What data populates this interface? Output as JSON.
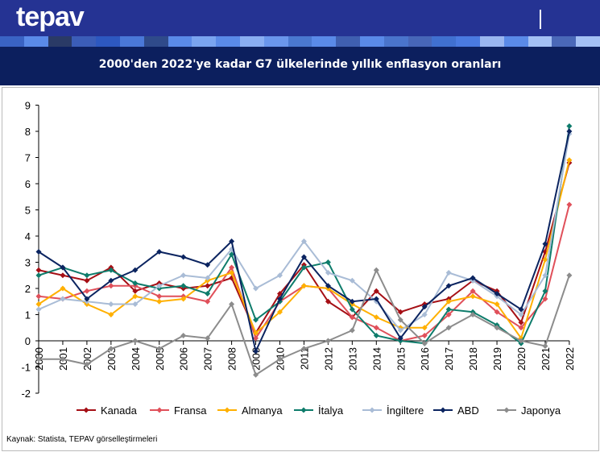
{
  "header": {
    "logo": "tepav"
  },
  "title": "2000'den 2022'ye kadar G7 ülkelerinde yıllık enflasyon oranları",
  "source": "Kaynak: Statista, TEPAV görselleştirmeleri",
  "chart_data": {
    "type": "line",
    "title": "2000'den 2022'ye kadar G7 ülkelerinde yıllık enflasyon oranları",
    "x": [
      "2000",
      "2001",
      "2002",
      "2003",
      "2004",
      "2005",
      "2006",
      "2007",
      "2008",
      "2009",
      "2010",
      "2011",
      "2012",
      "2013",
      "2014",
      "2015",
      "2016",
      "2017",
      "2018",
      "2019",
      "2020",
      "2021",
      "2022"
    ],
    "ylim": [
      -2,
      9
    ],
    "yticks": [
      -2,
      -1,
      0,
      1,
      2,
      3,
      4,
      5,
      6,
      7,
      8,
      9
    ],
    "grid": false,
    "legend": "bottom",
    "series": [
      {
        "name": "Kanada",
        "color": "#a50f15",
        "values": [
          2.7,
          2.5,
          2.3,
          2.8,
          1.9,
          2.2,
          2.0,
          2.1,
          2.4,
          0.3,
          1.8,
          2.9,
          1.5,
          0.9,
          1.9,
          1.1,
          1.4,
          1.6,
          2.3,
          1.9,
          0.7,
          3.4,
          6.8
        ]
      },
      {
        "name": "Fransa",
        "color": "#e0505a",
        "values": [
          1.7,
          1.6,
          1.9,
          2.1,
          2.1,
          1.7,
          1.7,
          1.5,
          2.8,
          0.1,
          1.5,
          2.1,
          2.0,
          0.9,
          0.5,
          0.0,
          0.2,
          1.0,
          1.9,
          1.1,
          0.5,
          1.6,
          5.2
        ]
      },
      {
        "name": "Almanya",
        "color": "#ffb000",
        "values": [
          1.4,
          2.0,
          1.4,
          1.0,
          1.7,
          1.5,
          1.6,
          2.3,
          2.6,
          0.3,
          1.1,
          2.1,
          2.0,
          1.4,
          0.9,
          0.5,
          0.5,
          1.5,
          1.7,
          1.4,
          0.1,
          3.1,
          6.9
        ]
      },
      {
        "name": "İtalya",
        "color": "#0e7c6b",
        "values": [
          2.5,
          2.8,
          2.5,
          2.7,
          2.2,
          2.0,
          2.1,
          1.8,
          3.3,
          0.8,
          1.5,
          2.8,
          3.0,
          1.2,
          0.2,
          0.0,
          -0.1,
          1.2,
          1.1,
          0.6,
          -0.1,
          1.9,
          8.2
        ]
      },
      {
        "name": "İngiltere",
        "color": "#a9bcd6",
        "values": [
          1.2,
          1.6,
          1.5,
          1.4,
          1.4,
          2.1,
          2.5,
          2.4,
          3.5,
          2.0,
          2.5,
          3.8,
          2.6,
          2.3,
          1.5,
          0.4,
          1.0,
          2.6,
          2.3,
          1.7,
          1.0,
          2.5,
          7.9
        ]
      },
      {
        "name": "ABD",
        "color": "#0b2460",
        "values": [
          3.4,
          2.8,
          1.6,
          2.3,
          2.7,
          3.4,
          3.2,
          2.9,
          3.8,
          -0.4,
          1.6,
          3.2,
          2.1,
          1.5,
          1.6,
          0.1,
          1.3,
          2.1,
          2.4,
          1.8,
          1.2,
          3.7,
          8.0
        ]
      },
      {
        "name": "Japonya",
        "color": "#8c8c8c",
        "values": [
          -0.7,
          -0.7,
          -0.9,
          -0.3,
          0.0,
          -0.3,
          0.2,
          0.1,
          1.4,
          -1.3,
          -0.7,
          -0.3,
          0.0,
          0.4,
          2.7,
          0.8,
          -0.1,
          0.5,
          1.0,
          0.5,
          0.0,
          -0.2,
          2.5
        ]
      }
    ]
  }
}
